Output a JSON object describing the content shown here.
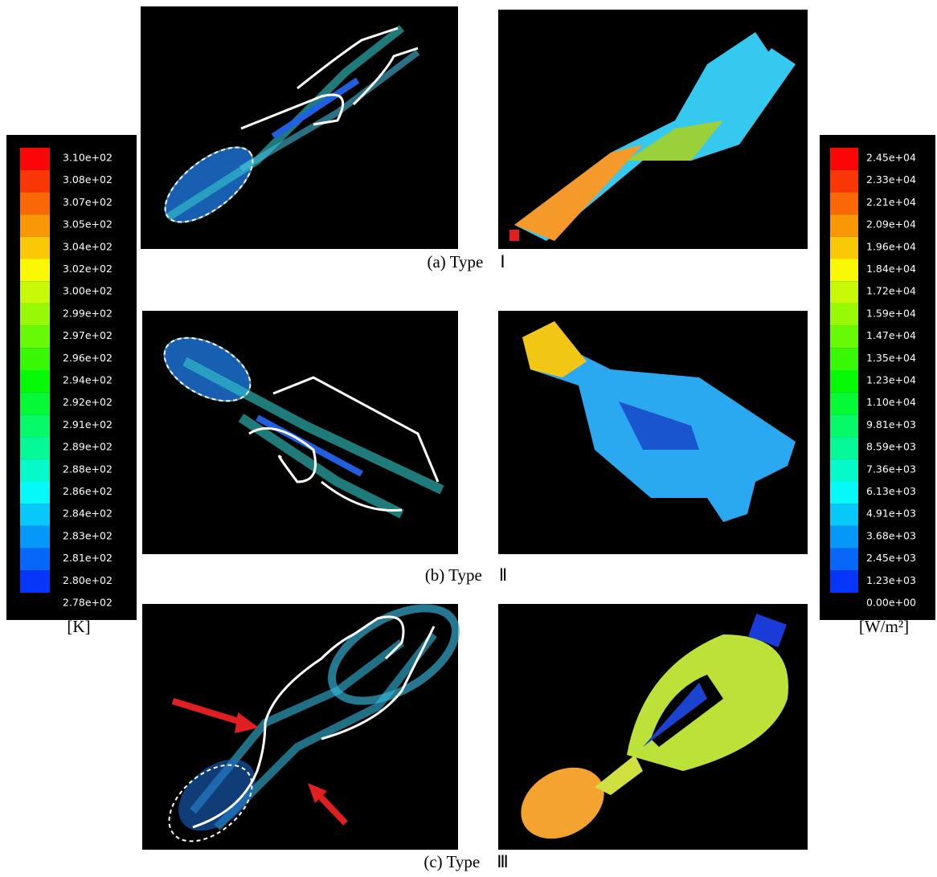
{
  "colorbars": {
    "left": {
      "labels": [
        "3.10e+02",
        "3.08e+02",
        "3.07e+02",
        "3.05e+02",
        "3.04e+02",
        "3.02e+02",
        "3.00e+02",
        "2.99e+02",
        "2.97e+02",
        "2.96e+02",
        "2.94e+02",
        "2.92e+02",
        "2.91e+02",
        "2.89e+02",
        "2.88e+02",
        "2.86e+02",
        "2.84e+02",
        "2.83e+02",
        "2.81e+02",
        "2.80e+02",
        "2.78e+02"
      ],
      "unit": "[K]"
    },
    "right": {
      "labels": [
        "2.45e+04",
        "2.33e+04",
        "2.21e+04",
        "2.09e+04",
        "1.96e+04",
        "1.84e+04",
        "1.72e+04",
        "1.59e+04",
        "1.47e+04",
        "1.35e+04",
        "1.23e+04",
        "1.10e+04",
        "9.81e+03",
        "8.59e+03",
        "7.36e+03",
        "6.13e+03",
        "4.91e+03",
        "3.68e+03",
        "2.45e+03",
        "1.23e+03",
        "0.00e+00"
      ],
      "unit": "[W/m²]"
    }
  },
  "captions": [
    "(a) Type　Ⅰ",
    "(b) Type　Ⅱ",
    "(c) Type　Ⅲ"
  ]
}
